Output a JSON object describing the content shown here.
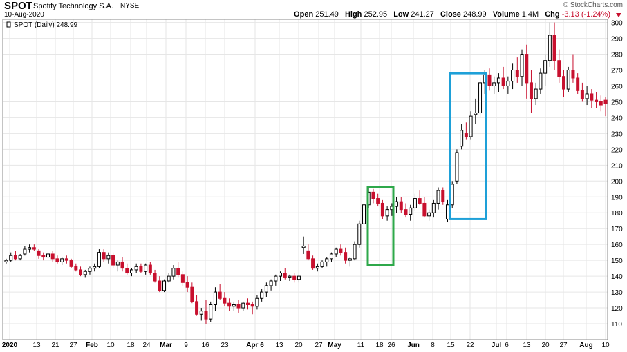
{
  "header": {
    "ticker": "SPOT",
    "company": "Spotify Technology S.A.",
    "exchange": "NYSE",
    "date": "10-Aug-2020",
    "credit": "© StockCharts.com",
    "open_label": "Open",
    "open": "251.49",
    "high_label": "High",
    "high": "252.95",
    "low_label": "Low",
    "low": "241.27",
    "close_label": "Close",
    "close": "248.99",
    "volume_label": "Volume",
    "volume": "1.4M",
    "chg_label": "Chg",
    "chg": "-3.13 (-1.24%)"
  },
  "legend": "SPOT (Daily) 248.99",
  "colors": {
    "up": "#000000",
    "down": "#c8102e",
    "green_box": "#2ea84a",
    "blue_box": "#1ea0d8",
    "grid": "#e6e6e6"
  },
  "chart_data": {
    "type": "candlestick",
    "ylim": [
      100,
      302
    ],
    "y_ticks": [
      110,
      120,
      130,
      140,
      150,
      160,
      170,
      180,
      190,
      200,
      210,
      220,
      230,
      240,
      250,
      260,
      270,
      280,
      290,
      300
    ],
    "x_tick_labels": [
      "2020",
      "13",
      "21",
      "27",
      "Feb",
      "10",
      "18",
      "24",
      "Mar",
      "9",
      "16",
      "23",
      "Apr 6",
      "13",
      "20",
      "27",
      "May",
      "11",
      "18",
      "26",
      "Jun",
      "8",
      "15",
      "22",
      "Jul",
      "6",
      "13",
      "20",
      "27",
      "Aug",
      "10"
    ],
    "annotations": [
      {
        "type": "box",
        "color": "green",
        "from": "May 13",
        "to": "May 21",
        "y_range": [
          147,
          196
        ]
      },
      {
        "type": "box",
        "color": "blue",
        "from": "Jun 15",
        "to": "Jun 26",
        "y_range": [
          176,
          268
        ]
      }
    ],
    "ohlc": [
      [
        149,
        151,
        148,
        150
      ],
      [
        150,
        155,
        149,
        153
      ],
      [
        153,
        156,
        150,
        151
      ],
      [
        151,
        154,
        150,
        153
      ],
      [
        154,
        159,
        153,
        157
      ],
      [
        157,
        160,
        155,
        158
      ],
      [
        158,
        160,
        156,
        157
      ],
      [
        156,
        157,
        151,
        153
      ],
      [
        153,
        155,
        150,
        152
      ],
      [
        152,
        155,
        150,
        154
      ],
      [
        154,
        156,
        149,
        151
      ],
      [
        151,
        153,
        148,
        149
      ],
      [
        149,
        152,
        147,
        151
      ],
      [
        151,
        153,
        148,
        150
      ],
      [
        150,
        151,
        145,
        146
      ],
      [
        146,
        148,
        143,
        144
      ],
      [
        144,
        146,
        140,
        141
      ],
      [
        141,
        144,
        139,
        143
      ],
      [
        143,
        146,
        141,
        145
      ],
      [
        145,
        148,
        143,
        146
      ],
      [
        146,
        157,
        145,
        155
      ],
      [
        155,
        157,
        149,
        151
      ],
      [
        151,
        155,
        148,
        153
      ],
      [
        153,
        155,
        145,
        147
      ],
      [
        147,
        150,
        143,
        149
      ],
      [
        149,
        152,
        143,
        145
      ],
      [
        145,
        148,
        141,
        142
      ],
      [
        142,
        145,
        140,
        144
      ],
      [
        144,
        148,
        142,
        146
      ],
      [
        146,
        148,
        142,
        143
      ],
      [
        143,
        148,
        141,
        147
      ],
      [
        147,
        149,
        141,
        142
      ],
      [
        142,
        144,
        136,
        137
      ],
      [
        137,
        140,
        130,
        131
      ],
      [
        131,
        138,
        130,
        137
      ],
      [
        137,
        142,
        136,
        140
      ],
      [
        140,
        147,
        138,
        145
      ],
      [
        145,
        149,
        139,
        141
      ],
      [
        141,
        143,
        134,
        136
      ],
      [
        136,
        140,
        130,
        133
      ],
      [
        133,
        136,
        123,
        124
      ],
      [
        124,
        128,
        115,
        116
      ],
      [
        116,
        120,
        112,
        118
      ],
      [
        118,
        125,
        110,
        113
      ],
      [
        113,
        124,
        111,
        122
      ],
      [
        122,
        133,
        118,
        130
      ],
      [
        130,
        135,
        125,
        126
      ],
      [
        126,
        130,
        121,
        123
      ],
      [
        123,
        126,
        118,
        121
      ],
      [
        121,
        124,
        118,
        122
      ],
      [
        122,
        125,
        117,
        120
      ],
      [
        120,
        124,
        118,
        123
      ],
      [
        123,
        126,
        119,
        122
      ],
      [
        122,
        124,
        116,
        121
      ],
      [
        121,
        128,
        119,
        126
      ],
      [
        126,
        132,
        124,
        130
      ],
      [
        130,
        136,
        127,
        134
      ],
      [
        134,
        138,
        131,
        137
      ],
      [
        137,
        141,
        134,
        140
      ],
      [
        140,
        143,
        137,
        142
      ],
      [
        142,
        145,
        138,
        139
      ],
      [
        139,
        141,
        137,
        140
      ],
      [
        140,
        142,
        136,
        138
      ],
      [
        138,
        141,
        136,
        140
      ],
      [
        158,
        165,
        154,
        159
      ],
      [
        156,
        160,
        150,
        151
      ],
      [
        151,
        153,
        144,
        145
      ],
      [
        145,
        148,
        143,
        146
      ],
      [
        146,
        150,
        145,
        149
      ],
      [
        149,
        152,
        146,
        151
      ],
      [
        151,
        155,
        149,
        154
      ],
      [
        154,
        158,
        152,
        157
      ],
      [
        157,
        160,
        153,
        155
      ],
      [
        155,
        158,
        148,
        150
      ],
      [
        150,
        152,
        146,
        151
      ],
      [
        151,
        162,
        150,
        160
      ],
      [
        160,
        175,
        158,
        173
      ],
      [
        173,
        188,
        170,
        185
      ],
      [
        185,
        196,
        183,
        193
      ],
      [
        193,
        195,
        186,
        189
      ],
      [
        189,
        192,
        184,
        186
      ],
      [
        186,
        188,
        176,
        178
      ],
      [
        178,
        184,
        175,
        182
      ],
      [
        182,
        186,
        178,
        184
      ],
      [
        184,
        190,
        180,
        187
      ],
      [
        187,
        190,
        180,
        182
      ],
      [
        182,
        186,
        177,
        179
      ],
      [
        179,
        185,
        175,
        183
      ],
      [
        183,
        192,
        181,
        189
      ],
      [
        189,
        194,
        185,
        186
      ],
      [
        186,
        190,
        177,
        178
      ],
      [
        178,
        182,
        175,
        180
      ],
      [
        180,
        188,
        177,
        186
      ],
      [
        186,
        196,
        182,
        194
      ],
      [
        194,
        196,
        185,
        187
      ],
      [
        176,
        188,
        174,
        185
      ],
      [
        185,
        200,
        183,
        198
      ],
      [
        200,
        220,
        198,
        218
      ],
      [
        222,
        236,
        220,
        232
      ],
      [
        230,
        237,
        226,
        228
      ],
      [
        228,
        244,
        226,
        241
      ],
      [
        242,
        252,
        236,
        243
      ],
      [
        243,
        265,
        240,
        262
      ],
      [
        262,
        270,
        255,
        267
      ],
      [
        267,
        271,
        257,
        260
      ],
      [
        260,
        266,
        255,
        262
      ],
      [
        262,
        268,
        256,
        265
      ],
      [
        265,
        272,
        258,
        260
      ],
      [
        260,
        266,
        255,
        263
      ],
      [
        263,
        274,
        258,
        270
      ],
      [
        270,
        278,
        262,
        266
      ],
      [
        266,
        283,
        260,
        280
      ],
      [
        280,
        286,
        252,
        262
      ],
      [
        262,
        270,
        243,
        252
      ],
      [
        252,
        262,
        248,
        258
      ],
      [
        258,
        271,
        255,
        268
      ],
      [
        268,
        280,
        260,
        276
      ],
      [
        276,
        300,
        272,
        292
      ],
      [
        292,
        300,
        270,
        276
      ],
      [
        276,
        283,
        262,
        266
      ],
      [
        266,
        270,
        253,
        258
      ],
      [
        258,
        272,
        256,
        270
      ],
      [
        270,
        280,
        262,
        265
      ],
      [
        265,
        268,
        255,
        257
      ],
      [
        257,
        262,
        250,
        252
      ],
      [
        252,
        260,
        248,
        255
      ],
      [
        255,
        258,
        246,
        251
      ],
      [
        251,
        256,
        246,
        250
      ],
      [
        250,
        254,
        244,
        248
      ],
      [
        251,
        253,
        241,
        249
      ]
    ]
  }
}
